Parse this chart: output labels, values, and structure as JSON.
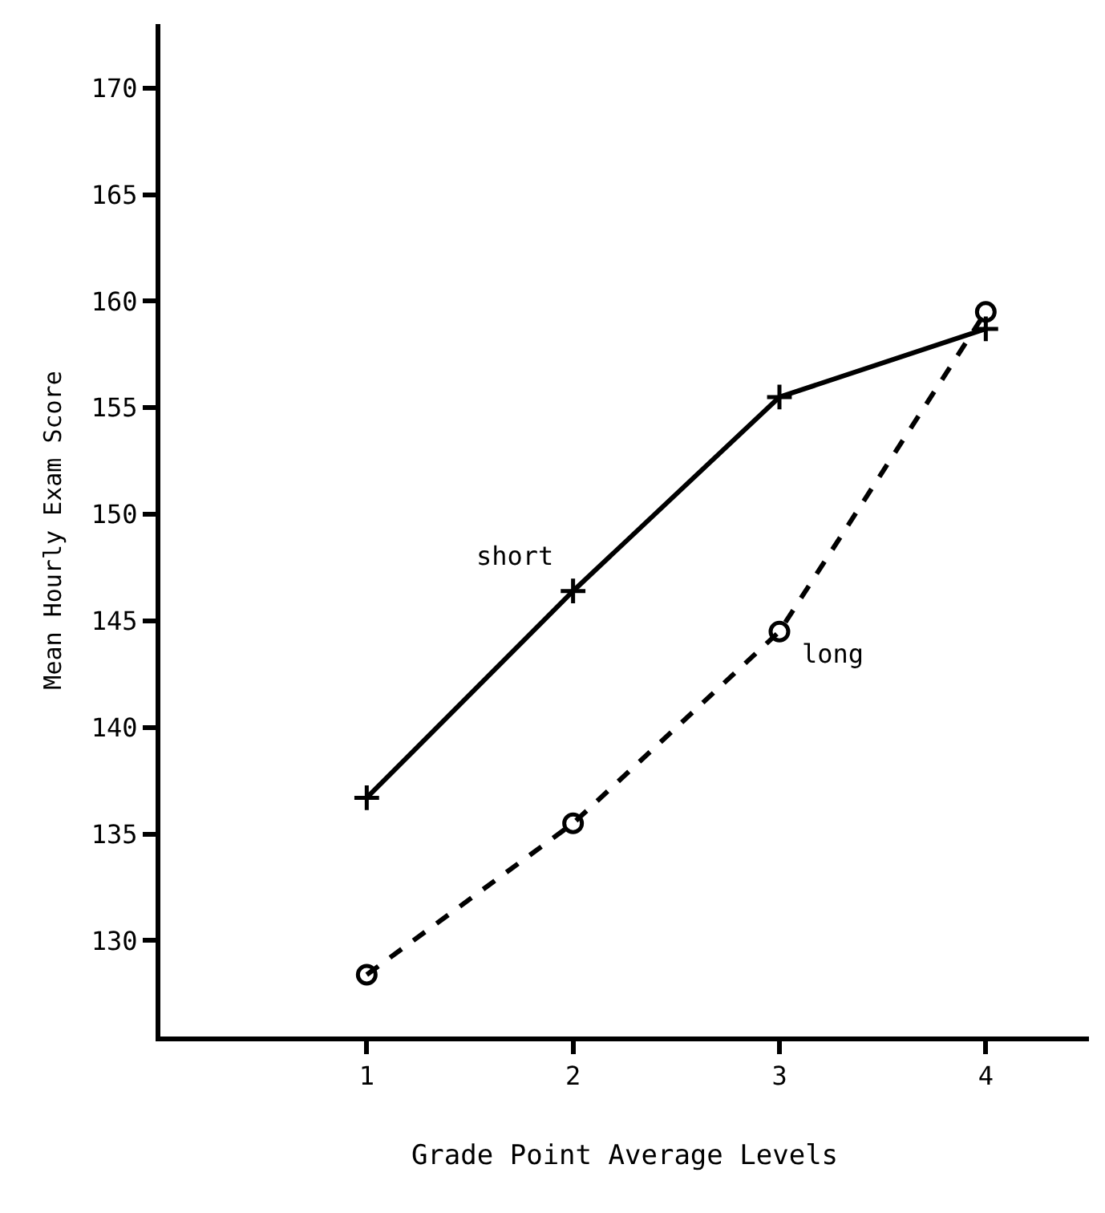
{
  "chart_data": {
    "type": "line",
    "xlabel": "Grade Point Average Levels",
    "ylabel": "Mean Hourly Exam Score",
    "x": [
      1,
      2,
      3,
      4
    ],
    "xlim": [
      0,
      4.5
    ],
    "xticks": [
      1,
      2,
      3,
      4
    ],
    "ylim": [
      125.5,
      173
    ],
    "yticks": [
      130,
      135,
      140,
      145,
      150,
      155,
      160,
      165,
      170
    ],
    "legend": false,
    "series": [
      {
        "name": "short",
        "color": "#000000",
        "marker": "cross",
        "line_style": "solid",
        "values": [
          136.7,
          146.4,
          155.5,
          158.7
        ]
      },
      {
        "name": "long",
        "color": "#000000",
        "marker": "circle",
        "line_style": "dashed",
        "values": [
          128.4,
          135.5,
          144.5,
          159.5
        ]
      }
    ]
  }
}
